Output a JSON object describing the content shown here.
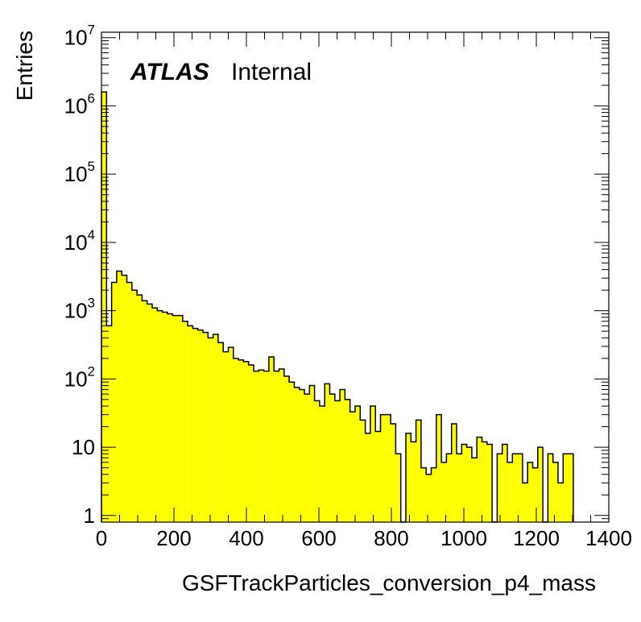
{
  "chart_data": {
    "type": "histogram",
    "xlabel": "GSFTrackParticles_conversion_p4_mass",
    "ylabel": "Entries",
    "label_bold": "ATLAS",
    "label_plain": "Internal",
    "xlim": [
      0,
      1400
    ],
    "ylim": [
      0.8,
      12000000
    ],
    "yscale": "log",
    "grid": false,
    "legend": "none",
    "fill_color": "#ffff00",
    "line_color": "#000000",
    "x_ticks": [
      "0",
      "200",
      "400",
      "600",
      "800",
      "1000",
      "1200",
      "1400"
    ],
    "y_ticks": [
      {
        "value": 1,
        "base": "1",
        "exp": ""
      },
      {
        "value": 10,
        "base": "10",
        "exp": ""
      },
      {
        "value": 100,
        "base": "10",
        "exp": "2"
      },
      {
        "value": 1000,
        "base": "10",
        "exp": "3"
      },
      {
        "value": 10000,
        "base": "10",
        "exp": "4"
      },
      {
        "value": 100000,
        "base": "10",
        "exp": "5"
      },
      {
        "value": 1000000,
        "base": "10",
        "exp": "6"
      },
      {
        "value": 10000000,
        "base": "10",
        "exp": "7"
      }
    ],
    "bin_width": 14,
    "bin_edges_start": 0,
    "values": [
      1600000,
      600,
      2600,
      3800,
      3300,
      2600,
      2000,
      1700,
      1400,
      1250,
      1100,
      1000,
      950,
      900,
      850,
      850,
      700,
      600,
      550,
      520,
      480,
      400,
      450,
      340,
      250,
      290,
      200,
      190,
      180,
      160,
      130,
      135,
      130,
      210,
      130,
      140,
      110,
      90,
      75,
      70,
      60,
      80,
      48,
      40,
      85,
      60,
      48,
      70,
      50,
      33,
      40,
      25,
      16,
      40,
      17,
      30,
      30,
      22,
      8,
      0,
      16,
      12,
      25,
      5,
      4,
      5,
      30,
      6,
      8,
      22,
      8,
      11,
      10,
      7,
      14,
      12,
      11,
      0,
      8,
      11,
      6,
      8,
      8,
      3,
      6,
      5,
      10,
      0,
      8,
      6,
      3,
      8,
      8
    ]
  }
}
